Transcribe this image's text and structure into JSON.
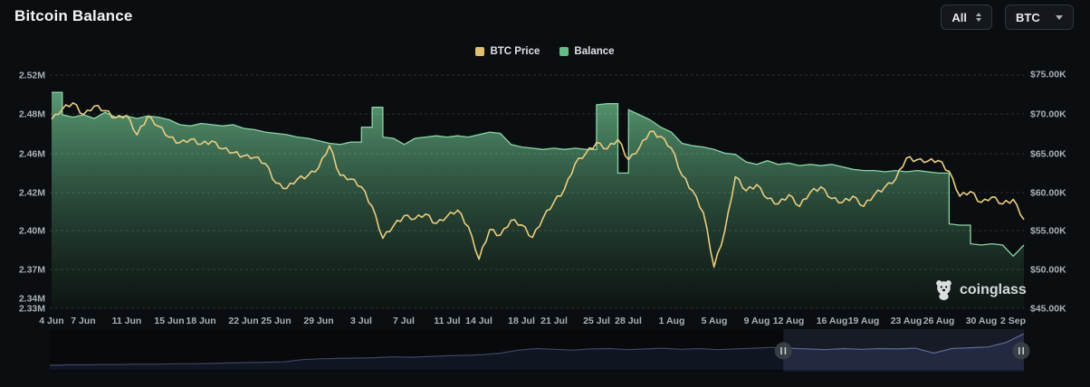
{
  "header": {
    "title": "Bitcoin Balance",
    "range_dropdown": {
      "value": "All"
    },
    "coin_dropdown": {
      "value": "BTC"
    }
  },
  "legend": [
    {
      "label": "BTC Price",
      "color": "#dfc06c"
    },
    {
      "label": "Balance",
      "color": "#64bd86"
    }
  ],
  "watermark": {
    "text": "coinglass"
  },
  "chart_data": {
    "type": "line+area",
    "start_date": "4 Jun",
    "end_date": "3 Sep",
    "interval": "1 day",
    "x_tick_labels": [
      "4 Jun",
      "7 Jun",
      "11 Jun",
      "15 Jun",
      "18 Jun",
      "22 Jun",
      "25 Jun",
      "29 Jun",
      "3 Jul",
      "7 Jul",
      "11 Jul",
      "14 Jul",
      "18 Jul",
      "21 Jul",
      "25 Jul",
      "28 Jul",
      "1 Aug",
      "5 Aug",
      "9 Aug",
      "12 Aug",
      "16 Aug",
      "19 Aug",
      "23 Aug",
      "26 Aug",
      "30 Aug",
      "2 Sep"
    ],
    "x_tick_day_offsets": [
      0,
      3,
      7,
      11,
      14,
      18,
      21,
      25,
      29,
      33,
      37,
      40,
      44,
      47,
      51,
      54,
      58,
      62,
      66,
      69,
      73,
      76,
      80,
      83,
      87,
      90
    ],
    "left_axis": {
      "series": "Balance",
      "unit": "BTC (millions)",
      "tick_labels": [
        "2.52M",
        "2.48M",
        "2.46M",
        "2.42M",
        "2.40M",
        "2.37M",
        "2.34M",
        "2.33M"
      ],
      "range": [
        2.33,
        2.52
      ]
    },
    "right_axis": {
      "series": "BTC Price",
      "unit": "USD (thousands)",
      "tick_labels": [
        "$75.00K",
        "$70.00K",
        "$65.00K",
        "$60.00K",
        "$55.00K",
        "$50.00K",
        "$45.00K"
      ],
      "range": [
        45,
        75
      ]
    },
    "grid": "horizontal-dashed",
    "legend_position": "top-center",
    "series": [
      {
        "name": "Balance",
        "type": "area",
        "color": "#64bd86",
        "unit": "M BTC",
        "values": [
          2.506,
          2.488,
          2.486,
          2.488,
          2.485,
          2.49,
          2.486,
          2.487,
          2.485,
          2.487,
          2.486,
          2.484,
          2.48,
          2.479,
          2.481,
          2.48,
          2.479,
          2.48,
          2.477,
          2.476,
          2.474,
          2.473,
          2.472,
          2.47,
          2.469,
          2.467,
          2.465,
          2.464,
          2.466,
          2.478,
          2.494,
          2.47,
          2.469,
          2.464,
          2.469,
          2.47,
          2.471,
          2.47,
          2.471,
          2.47,
          2.472,
          2.474,
          2.473,
          2.464,
          2.462,
          2.461,
          2.46,
          2.461,
          2.46,
          2.461,
          2.46,
          2.496,
          2.497,
          2.441,
          2.492,
          2.488,
          2.484,
          2.478,
          2.474,
          2.465,
          2.463,
          2.462,
          2.46,
          2.457,
          2.456,
          2.45,
          2.448,
          2.451,
          2.448,
          2.449,
          2.447,
          2.448,
          2.447,
          2.448,
          2.446,
          2.444,
          2.443,
          2.443,
          2.442,
          2.443,
          2.442,
          2.443,
          2.442,
          2.441,
          2.4,
          2.399,
          2.384,
          2.383,
          2.384,
          2.383,
          2.374,
          2.383
        ]
      },
      {
        "name": "BTC Price",
        "type": "line",
        "color": "#e9cd80",
        "unit": "USD thousands",
        "values": [
          69.2,
          70.5,
          71.3,
          69.8,
          70.9,
          70.3,
          69.4,
          69.7,
          67.2,
          69.6,
          68.3,
          66.9,
          66.2,
          66.6,
          66.0,
          66.4,
          65.4,
          64.9,
          64.5,
          64.3,
          63.5,
          61.0,
          60.3,
          61.5,
          62.0,
          63.0,
          65.8,
          62.0,
          61.5,
          60.5,
          58.0,
          53.9,
          55.5,
          56.8,
          56.4,
          57.0,
          55.8,
          56.7,
          57.5,
          55.4,
          51.2,
          55.0,
          54.3,
          56.2,
          55.6,
          54.0,
          56.5,
          58.5,
          60.2,
          63.5,
          64.8,
          66.2,
          65.4,
          66.6,
          64.0,
          65.5,
          67.6,
          67.0,
          65.5,
          62.0,
          60.0,
          57.2,
          50.2,
          54.8,
          61.8,
          60.0,
          60.8,
          59.0,
          58.3,
          59.5,
          58.0,
          59.8,
          60.5,
          59.0,
          58.5,
          59.3,
          58.0,
          59.5,
          60.5,
          61.5,
          64.2,
          64.0,
          63.8,
          63.9,
          62.5,
          59.3,
          59.9,
          58.5,
          59.2,
          58.3,
          58.9,
          56.3
        ]
      }
    ],
    "navigator": {
      "description": "mini overview strip with drag selection",
      "values": [
        0.12,
        0.13,
        0.13,
        0.14,
        0.14,
        0.15,
        0.15,
        0.16,
        0.16,
        0.17,
        0.18,
        0.19,
        0.2,
        0.21,
        0.27,
        0.29,
        0.3,
        0.31,
        0.32,
        0.34,
        0.33,
        0.35,
        0.37,
        0.38,
        0.4,
        0.44,
        0.52,
        0.56,
        0.54,
        0.52,
        0.55,
        0.56,
        0.53,
        0.55,
        0.57,
        0.54,
        0.56,
        0.53,
        0.55,
        0.57,
        0.59,
        0.57,
        0.55,
        0.53,
        0.56,
        0.54,
        0.56,
        0.55,
        0.57,
        0.44,
        0.56,
        0.58,
        0.6,
        0.72,
        0.95
      ],
      "selection": {
        "start_frac": 0.753,
        "end_frac": 1.0
      }
    }
  }
}
